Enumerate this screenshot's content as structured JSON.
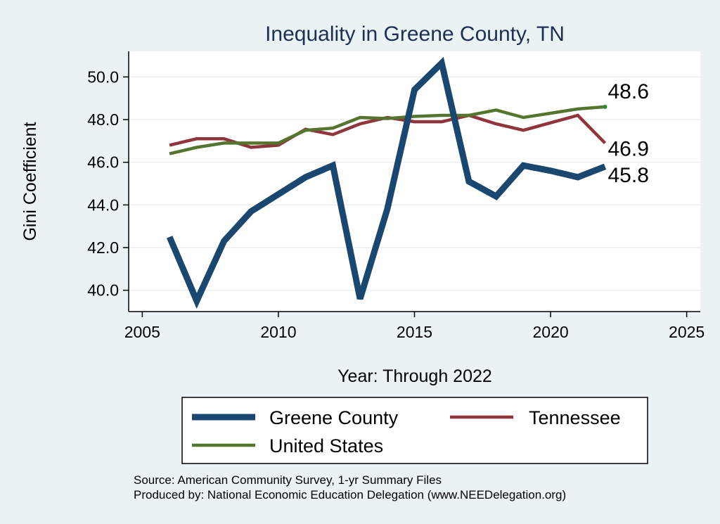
{
  "chart_data": {
    "type": "line",
    "title": "Inequality in Greene County, TN",
    "xlabel": "Year: Through 2022",
    "ylabel": "Gini Coefficient",
    "xlim": [
      2004.5,
      2025.5
    ],
    "ylim": [
      39.0,
      51.2
    ],
    "x_ticks": [
      2005,
      2010,
      2015,
      2020,
      2025
    ],
    "y_ticks": [
      40.0,
      42.0,
      44.0,
      46.0,
      48.0,
      50.0
    ],
    "y_tick_labels": [
      "40.0",
      "42.0",
      "44.0",
      "46.0",
      "48.0",
      "50.0"
    ],
    "grid": true,
    "x": [
      2006,
      2007,
      2008,
      2009,
      2010,
      2011,
      2012,
      2013,
      2014,
      2015,
      2016,
      2017,
      2018,
      2019,
      2020,
      2021,
      2022
    ],
    "series": [
      {
        "name": "Greene County",
        "color": "#1a476f",
        "values": [
          42.5,
          39.5,
          42.3,
          43.7,
          44.5,
          45.3,
          45.85,
          39.6,
          43.8,
          49.4,
          50.65,
          45.1,
          44.4,
          45.85,
          45.6,
          45.3,
          45.8
        ],
        "end_label": "45.8"
      },
      {
        "name": "Tennessee",
        "color": "#90353b",
        "values": [
          46.8,
          47.1,
          47.1,
          46.7,
          46.8,
          47.55,
          47.3,
          47.8,
          48.1,
          47.9,
          47.9,
          48.2,
          47.8,
          47.5,
          47.85,
          48.2,
          46.9
        ],
        "end_label": "46.9"
      },
      {
        "name": "United States",
        "color": "#55752f",
        "values": [
          46.4,
          46.7,
          46.9,
          46.9,
          46.9,
          47.5,
          47.6,
          48.1,
          48.05,
          48.15,
          48.2,
          48.2,
          48.45,
          48.1,
          48.3,
          48.5,
          48.6
        ],
        "end_label": "48.6"
      }
    ],
    "legend": {
      "position": "bottom",
      "entries": [
        "Greene County",
        "Tennessee",
        "United States"
      ]
    },
    "notes": [
      "Source: American Community Survey, 1-yr Summary Files",
      "Produced by: National Economic Education Delegation (www.NEEDelegation.org)"
    ]
  }
}
